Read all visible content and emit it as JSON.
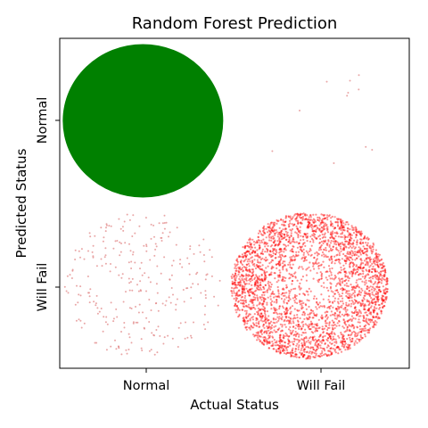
{
  "chart_data": {
    "type": "scatter",
    "title": "Random Forest Prediction",
    "xlabel": "Actual Status",
    "ylabel": "Predicted Status",
    "x_categories": [
      "Normal",
      "Will Fail"
    ],
    "y_categories": [
      "Will Fail",
      "Normal"
    ],
    "xlim": [
      -0.5,
      1.6
    ],
    "ylim": [
      -0.5,
      1.5
    ],
    "grid": false,
    "clusters": [
      {
        "actual": "Normal",
        "predicted": "Normal",
        "color": "#008000",
        "approx_count": 30000,
        "density": "solid"
      },
      {
        "actual": "Will Fail",
        "predicted": "Normal",
        "color": "#e08080",
        "approx_count": 11,
        "density": "sparse"
      },
      {
        "actual": "Normal",
        "predicted": "Will Fail",
        "color": "#e08080",
        "approx_count": 280,
        "density": "sparse"
      },
      {
        "actual": "Will Fail",
        "predicted": "Will Fail",
        "color": "#ff0000",
        "approx_count": 5000,
        "density": "dense"
      }
    ]
  },
  "colors": {
    "correct_normal": "#008000",
    "false_positive": "#e08080",
    "correct_fail": "#ff0000"
  }
}
